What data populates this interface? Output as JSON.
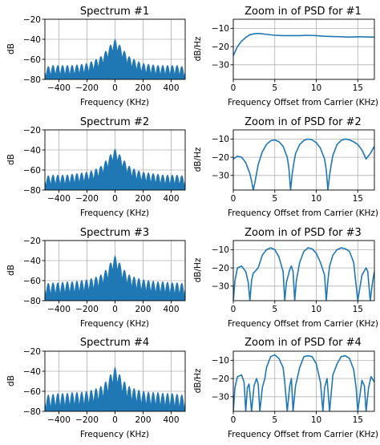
{
  "figure": {
    "series_color": "#1f77b4",
    "grid": true
  },
  "chart_data": [
    {
      "type": "area",
      "title": "Spectrum #1",
      "xlabel": "Frequency (KHz)",
      "ylabel": "dB",
      "xlim": [
        -500,
        500
      ],
      "ylim": [
        -80,
        -20
      ],
      "xticks": [
        -400,
        -200,
        0,
        200,
        400
      ],
      "yticks": [
        -20,
        -40,
        -60,
        -80
      ],
      "series": [
        {
          "x": [
            -500,
            -450,
            -400,
            -350,
            -300,
            -250,
            -200,
            -150,
            -100,
            -50,
            -25,
            0,
            25,
            50,
            100,
            150,
            200,
            250,
            300,
            350,
            400,
            450,
            500
          ],
          "y": [
            -68,
            -66,
            -66,
            -66,
            -66,
            -65,
            -64,
            -61,
            -57,
            -49,
            -44,
            -40,
            -44,
            -49,
            -57,
            -61,
            -64,
            -65,
            -66,
            -66,
            -66,
            -66,
            -68
          ]
        }
      ],
      "lobes": {
        "spacing_khz": 34,
        "depth_db": 10
      }
    },
    {
      "type": "line",
      "title": "Zoom in of PSD for #1",
      "xlabel": "Frequency Offset from Carrier (KHz)",
      "ylabel": "dB/Hz",
      "xlim": [
        0,
        17
      ],
      "ylim": [
        -38,
        -5
      ],
      "xticks": [
        0,
        5,
        10,
        15
      ],
      "yticks": [
        -10,
        -20,
        -30
      ],
      "series": [
        {
          "x": [
            0,
            0.5,
            1,
            1.5,
            2,
            2.5,
            3,
            3.5,
            4,
            5,
            6,
            7,
            8,
            9,
            10,
            11,
            12,
            13,
            14,
            15,
            16,
            17
          ],
          "y": [
            -25,
            -20,
            -17,
            -15,
            -13.5,
            -13,
            -12.8,
            -13,
            -13.3,
            -13.8,
            -14,
            -14,
            -14,
            -13.8,
            -14,
            -14.3,
            -14.5,
            -14.6,
            -14.8,
            -14.6,
            -14.7,
            -14.8
          ]
        }
      ]
    },
    {
      "type": "area",
      "title": "Spectrum #2",
      "xlabel": "Frequency (KHz)",
      "ylabel": "dB",
      "xlim": [
        -500,
        500
      ],
      "ylim": [
        -80,
        -20
      ],
      "xticks": [
        -400,
        -200,
        0,
        200,
        400
      ],
      "yticks": [
        -20,
        -40,
        -60,
        -80
      ],
      "series": [
        {
          "x": [
            -500,
            -450,
            -400,
            -350,
            -300,
            -250,
            -200,
            -150,
            -100,
            -50,
            -25,
            0,
            25,
            50,
            100,
            150,
            200,
            250,
            300,
            350,
            400,
            450,
            500
          ],
          "y": [
            -66,
            -65,
            -65,
            -65,
            -64,
            -63,
            -62,
            -60,
            -56,
            -48,
            -43,
            -39,
            -43,
            -48,
            -56,
            -60,
            -62,
            -63,
            -64,
            -65,
            -65,
            -65,
            -66
          ]
        }
      ],
      "lobes": {
        "spacing_khz": 34,
        "depth_db": 10
      }
    },
    {
      "type": "line",
      "title": "Zoom in of PSD for #2",
      "xlabel": "Frequency Offset from Carrier (KHz)",
      "ylabel": "dB/Hz",
      "xlim": [
        0,
        17
      ],
      "ylim": [
        -38,
        -5
      ],
      "xticks": [
        0,
        5,
        10,
        15
      ],
      "yticks": [
        -10,
        -20,
        -30
      ],
      "series": [
        {
          "x": [
            0,
            0.5,
            1,
            1.5,
            2,
            2.2,
            2.4,
            2.6,
            2.8,
            3,
            3.5,
            4,
            4.5,
            5,
            5.5,
            6,
            6.5,
            6.7,
            6.9,
            7.1,
            7.3,
            7.5,
            8,
            8.5,
            9,
            9.5,
            10,
            10.5,
            11,
            11.2,
            11.4,
            11.6,
            11.8,
            12,
            12.5,
            13,
            13.5,
            14,
            14.5,
            15,
            15.5,
            16,
            16.5,
            17
          ],
          "y": [
            -21,
            -19.5,
            -20,
            -23,
            -29,
            -33,
            -38,
            -34,
            -29,
            -24,
            -17,
            -13,
            -11,
            -10.5,
            -11.5,
            -14,
            -20,
            -26,
            -38,
            -29,
            -23,
            -18,
            -13,
            -10.8,
            -10,
            -10.5,
            -12,
            -15,
            -21,
            -27,
            -38,
            -30,
            -24,
            -19,
            -13,
            -10.8,
            -10,
            -10.5,
            -11.5,
            -13,
            -16,
            -21,
            -18,
            -14
          ]
        }
      ]
    },
    {
      "type": "area",
      "title": "Spectrum #3",
      "xlabel": "Frequency (KHz)",
      "ylabel": "dB",
      "xlim": [
        -500,
        500
      ],
      "ylim": [
        -80,
        -20
      ],
      "xticks": [
        -400,
        -200,
        0,
        200,
        400
      ],
      "yticks": [
        -20,
        -40,
        -60,
        -80
      ],
      "series": [
        {
          "x": [
            -500,
            -450,
            -400,
            -350,
            -300,
            -250,
            -200,
            -150,
            -100,
            -50,
            -25,
            0,
            25,
            50,
            100,
            150,
            200,
            250,
            300,
            350,
            400,
            450,
            500
          ],
          "y": [
            -63,
            -62,
            -62,
            -61,
            -61,
            -60,
            -59,
            -57,
            -54,
            -47,
            -40,
            -35,
            -40,
            -47,
            -54,
            -57,
            -59,
            -60,
            -61,
            -61,
            -62,
            -62,
            -63
          ]
        }
      ],
      "lobes": {
        "spacing_khz": 34,
        "depth_db": 12
      }
    },
    {
      "type": "line",
      "title": "Zoom in of PSD for #3",
      "xlabel": "Frequency Offset from Carrier (KHz)",
      "ylabel": "dB/Hz",
      "xlim": [
        0,
        17
      ],
      "ylim": [
        -38,
        -5
      ],
      "xticks": [
        0,
        5,
        10,
        15
      ],
      "yticks": [
        -10,
        -20,
        -30
      ],
      "series": [
        {
          "x": [
            0,
            0.2,
            0.5,
            1,
            1.5,
            1.8,
            2,
            2.2,
            2.4,
            2.8,
            3,
            3.5,
            4,
            4.5,
            5,
            5.5,
            6,
            6.2,
            6.4,
            6.8,
            7,
            7.2,
            7.4,
            7.6,
            8,
            8.5,
            9,
            9.5,
            10,
            10.5,
            11,
            11.2,
            11.4,
            11.6,
            12,
            12.5,
            13,
            13.5,
            14,
            14.5,
            15,
            15.5,
            16,
            16.2,
            16.5,
            16.8,
            17
          ],
          "y": [
            -38,
            -27,
            -20,
            -19,
            -22,
            -28,
            -38,
            -27,
            -23,
            -21,
            -20,
            -13,
            -10,
            -9,
            -10,
            -14,
            -22,
            -38,
            -28,
            -21,
            -19,
            -22,
            -38,
            -27,
            -17,
            -11,
            -9,
            -9.5,
            -12,
            -17,
            -24,
            -38,
            -27,
            -19,
            -13,
            -10,
            -9,
            -9.5,
            -11,
            -17,
            -38,
            -24,
            -20,
            -22,
            -38,
            -27,
            -22
          ]
        }
      ]
    },
    {
      "type": "area",
      "title": "Spectrum #4",
      "xlabel": "Frequency (KHz)",
      "ylabel": "dB",
      "xlim": [
        -500,
        500
      ],
      "ylim": [
        -80,
        -20
      ],
      "xticks": [
        -400,
        -200,
        0,
        200,
        400
      ],
      "yticks": [
        -20,
        -40,
        -60,
        -80
      ],
      "series": [
        {
          "x": [
            -500,
            -450,
            -400,
            -350,
            -300,
            -250,
            -200,
            -150,
            -100,
            -50,
            -25,
            0,
            25,
            50,
            100,
            150,
            200,
            250,
            300,
            350,
            400,
            450,
            500
          ],
          "y": [
            -64,
            -63,
            -62,
            -62,
            -61,
            -61,
            -60,
            -58,
            -55,
            -48,
            -41,
            -36,
            -41,
            -48,
            -55,
            -58,
            -60,
            -61,
            -61,
            -62,
            -62,
            -63,
            -64
          ]
        }
      ],
      "lobes": {
        "spacing_khz": 34,
        "depth_db": 14
      }
    },
    {
      "type": "line",
      "title": "Zoom in of PSD for #4",
      "xlabel": "Frequency Offset from Carrier (KHz)",
      "ylabel": "dB/Hz",
      "xlim": [
        0,
        17
      ],
      "ylim": [
        -38,
        -5
      ],
      "xticks": [
        0,
        5,
        10,
        15
      ],
      "yticks": [
        -10,
        -20,
        -30
      ],
      "series": [
        {
          "x": [
            0,
            0.2,
            0.5,
            1,
            1.3,
            1.5,
            1.7,
            1.9,
            2.2,
            2.5,
            2.8,
            3,
            3.2,
            3.5,
            3.8,
            4,
            4.5,
            5,
            5.5,
            6,
            6.2,
            6.5,
            6.8,
            7,
            7.2,
            7.5,
            8,
            8.5,
            9,
            9.5,
            10,
            10.5,
            10.8,
            11,
            11.3,
            11.6,
            12,
            12.5,
            13,
            13.5,
            14,
            14.5,
            14.8,
            15,
            15.5,
            15.8,
            16,
            16.3,
            16.6,
            17
          ],
          "y": [
            -38,
            -25,
            -19,
            -18,
            -22,
            -38,
            -25,
            -23,
            -38,
            -24,
            -20,
            -23,
            -38,
            -25,
            -20,
            -14,
            -8,
            -7,
            -9,
            -14,
            -22,
            -38,
            -24,
            -20,
            -38,
            -24,
            -14,
            -8,
            -7.5,
            -8,
            -12,
            -22,
            -38,
            -25,
            -20,
            -38,
            -18,
            -12,
            -8,
            -7.5,
            -9,
            -15,
            -25,
            -38,
            -21,
            -24,
            -38,
            -25,
            -19,
            -22
          ]
        }
      ]
    }
  ]
}
